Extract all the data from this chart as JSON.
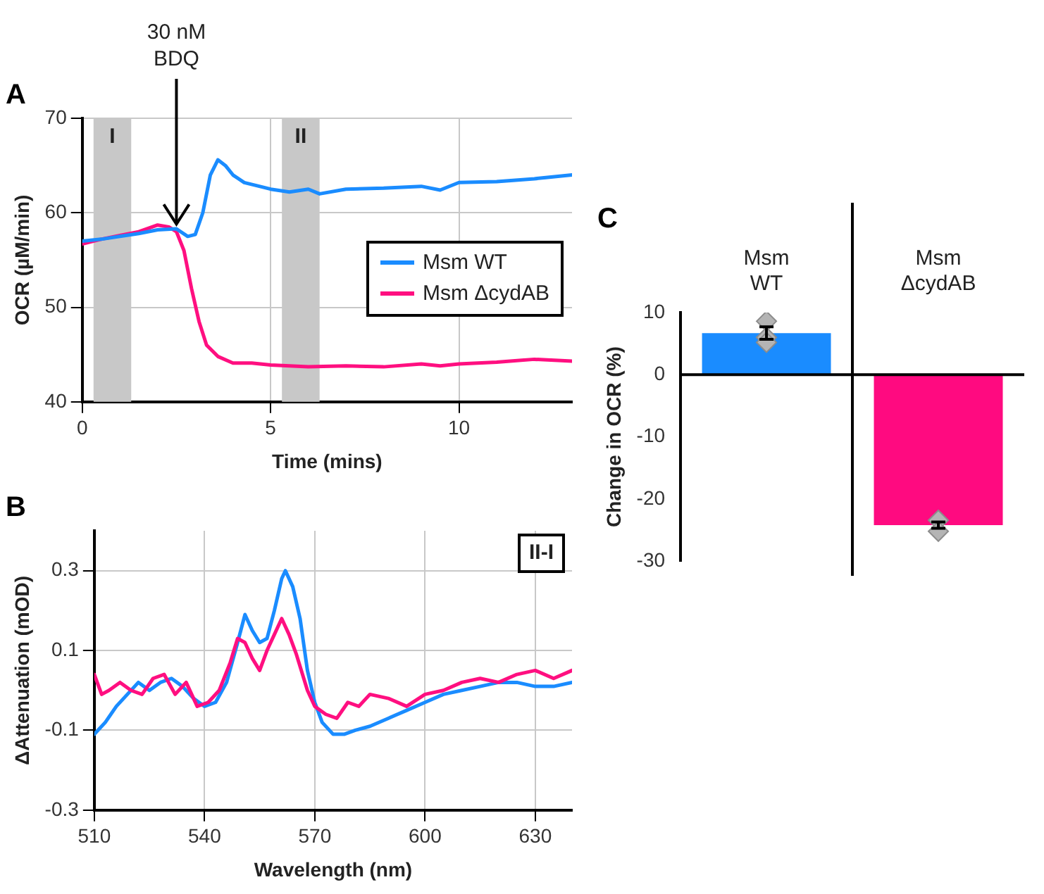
{
  "chart_data": [
    {
      "type": "line",
      "title": "A",
      "xlabel": "Time (mins)",
      "ylabel": "OCR (µM/min)",
      "xlim": [
        0,
        13
      ],
      "xticks": [
        0,
        5,
        10
      ],
      "ylim": [
        40,
        70
      ],
      "yticks": [
        40,
        50,
        60,
        70
      ],
      "grid": true,
      "legend": "right",
      "bands": [
        {
          "axis": "x",
          "from": 0.3,
          "to": 1.3,
          "label": "I",
          "color": "#c8c8c8"
        },
        {
          "axis": "x",
          "from": 5.3,
          "to": 6.3,
          "label": "II",
          "color": "#c8c8c8"
        }
      ],
      "annotations": [
        {
          "text": "30 nM BDQ",
          "x": 2.5,
          "y": 58.5
        }
      ],
      "series": [
        {
          "name": "Msm WT",
          "color": "#1a8cff",
          "x": [
            0,
            0.5,
            1,
            1.5,
            2,
            2.5,
            2.8,
            3,
            3.2,
            3.4,
            3.6,
            3.8,
            4,
            4.3,
            4.7,
            5,
            5.5,
            6,
            6.3,
            7,
            8,
            9,
            9.5,
            10,
            11,
            12,
            13
          ],
          "values": [
            57,
            57.2,
            57.5,
            57.8,
            58.2,
            58.3,
            57.5,
            57.7,
            60,
            64,
            65.6,
            65,
            64,
            63.2,
            62.8,
            62.5,
            62.2,
            62.5,
            62,
            62.5,
            62.6,
            62.8,
            62.4,
            63.2,
            63.3,
            63.6,
            64
          ]
        },
        {
          "name": "Msm ΔcydAB",
          "color": "#ff0f80",
          "x": [
            0,
            0.5,
            1,
            1.5,
            2,
            2.3,
            2.5,
            2.7,
            2.9,
            3.1,
            3.3,
            3.6,
            4,
            4.5,
            5,
            5.5,
            6,
            7,
            8,
            9,
            9.5,
            10,
            11,
            12,
            13
          ],
          "values": [
            56.7,
            57.2,
            57.6,
            58,
            58.7,
            58.5,
            58,
            56,
            52,
            48.5,
            46,
            44.8,
            44.1,
            44.1,
            43.9,
            43.8,
            43.7,
            43.8,
            43.7,
            44,
            43.8,
            44,
            44.2,
            44.5,
            44.3
          ]
        }
      ]
    },
    {
      "type": "line",
      "title": "B",
      "xlabel": "Wavelength (nm)",
      "ylabel": "ΔAttenuation (mOD)",
      "xlim": [
        510,
        640
      ],
      "xticks": [
        510,
        540,
        570,
        600,
        630
      ],
      "ylim": [
        -0.3,
        0.4
      ],
      "yticks": [
        -0.3,
        -0.1,
        0.1,
        0.3
      ],
      "grid": true,
      "annotations": [
        "II-I"
      ],
      "series": [
        {
          "color": "#ff0f80",
          "x": [
            510,
            512,
            514,
            517,
            520,
            523,
            526,
            529,
            532,
            535,
            538,
            541,
            544,
            547,
            549,
            551,
            553,
            555,
            557,
            559,
            561,
            563,
            565,
            568,
            570,
            573,
            576,
            579,
            582,
            585,
            590,
            595,
            600,
            605,
            610,
            615,
            620,
            625,
            630,
            635,
            640
          ],
          "values": [
            0.04,
            -0.01,
            0,
            0.02,
            0,
            -0.01,
            0.03,
            0.04,
            -0.01,
            0.02,
            -0.04,
            -0.03,
            0,
            0.07,
            0.13,
            0.12,
            0.08,
            0.05,
            0.1,
            0.14,
            0.18,
            0.14,
            0.09,
            0,
            -0.04,
            -0.06,
            -0.07,
            -0.03,
            -0.04,
            -0.01,
            -0.02,
            -0.04,
            -0.01,
            0,
            0.02,
            0.03,
            0.02,
            0.04,
            0.05,
            0.03,
            0.05
          ]
        },
        {
          "color": "#1a8cff",
          "x": [
            510,
            513,
            516,
            519,
            522,
            525,
            528,
            531,
            534,
            537,
            540,
            543,
            546,
            549,
            551,
            553,
            555,
            557,
            559,
            561,
            562,
            564,
            566,
            568,
            570,
            572,
            575,
            578,
            581,
            585,
            590,
            595,
            600,
            605,
            610,
            615,
            620,
            625,
            630,
            635,
            640
          ],
          "values": [
            -0.11,
            -0.08,
            -0.04,
            -0.01,
            0.02,
            0,
            0.02,
            0.03,
            0.01,
            -0.02,
            -0.04,
            -0.03,
            0.02,
            0.12,
            0.19,
            0.15,
            0.12,
            0.13,
            0.2,
            0.28,
            0.3,
            0.26,
            0.18,
            0.05,
            -0.03,
            -0.08,
            -0.11,
            -0.11,
            -0.1,
            -0.09,
            -0.07,
            -0.05,
            -0.03,
            -0.01,
            0,
            0.01,
            0.02,
            0.02,
            0.01,
            0.01,
            0.02
          ]
        }
      ]
    },
    {
      "type": "bar",
      "title": "C",
      "ylabel": "Change in OCR (%)",
      "categories": [
        "Msm WT",
        "Msm ΔcydAB"
      ],
      "ylim": [
        -30,
        10
      ],
      "yticks": [
        -30,
        -20,
        -10,
        0,
        10
      ],
      "marker": "diamond",
      "series": [
        {
          "colors": [
            "#1a8cff",
            "#ff0a80"
          ],
          "values": [
            6.7,
            -24.2
          ],
          "errors": [
            1,
            0.5
          ]
        },
        {
          "type": "scatter",
          "color": "#b4b4b4",
          "x": [
            "Msm WT",
            "Msm WT",
            "Msm WT",
            "Msm ΔcydAB",
            "Msm ΔcydAB"
          ],
          "values": [
            8.6,
            6,
            5.2,
            -23.4,
            -25.2
          ]
        }
      ]
    }
  ]
}
